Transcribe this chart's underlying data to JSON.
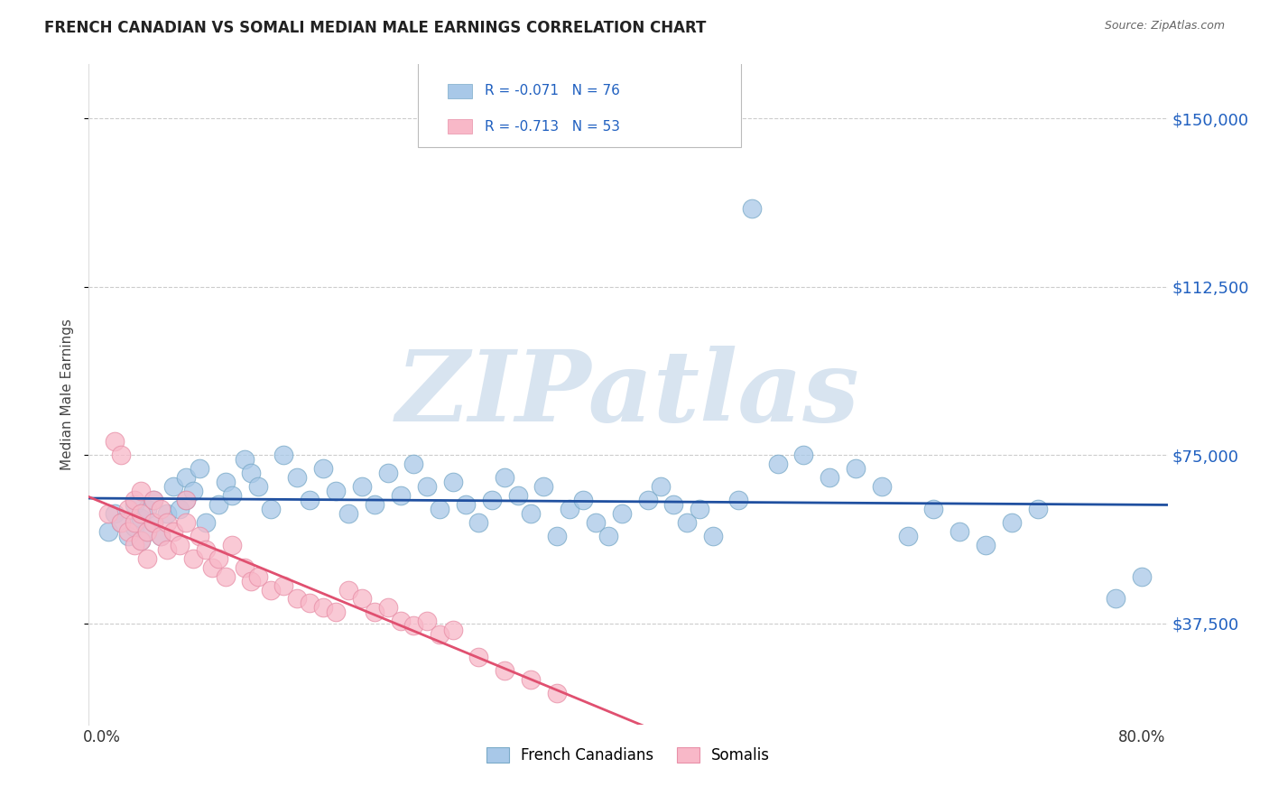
{
  "title": "FRENCH CANADIAN VS SOMALI MEDIAN MALE EARNINGS CORRELATION CHART",
  "source": "Source: ZipAtlas.com",
  "ylabel": "Median Male Earnings",
  "ytick_labels": [
    "$37,500",
    "$75,000",
    "$112,500",
    "$150,000"
  ],
  "ytick_values": [
    37500,
    75000,
    112500,
    150000
  ],
  "ylim": [
    15000,
    162000
  ],
  "xlim": [
    -0.01,
    0.82
  ],
  "xtick_positions": [
    0.0,
    0.8
  ],
  "xtick_labels": [
    "0.0%",
    "80.0%"
  ],
  "legend_blue_label": "French Canadians",
  "legend_pink_label": "Somalis",
  "legend_blue_r": "R = -0.071",
  "legend_blue_n": "N = 76",
  "legend_pink_r": "R = -0.713",
  "legend_pink_n": "N = 53",
  "blue_color": "#a8c8e8",
  "blue_edge_color": "#7aaac8",
  "pink_color": "#f8b8c8",
  "pink_edge_color": "#e890a8",
  "blue_line_color": "#2050a0",
  "pink_line_color": "#e05070",
  "background_color": "#ffffff",
  "watermark_color": "#d8e4f0",
  "title_color": "#222222",
  "source_color": "#666666",
  "ytick_color": "#2060c0",
  "ylabel_color": "#444444",
  "grid_color": "#cccccc",
  "legend_text_color": "#2060c0",
  "blue_x": [
    0.005,
    0.01,
    0.015,
    0.02,
    0.025,
    0.025,
    0.03,
    0.03,
    0.035,
    0.035,
    0.04,
    0.04,
    0.045,
    0.05,
    0.055,
    0.06,
    0.065,
    0.065,
    0.07,
    0.075,
    0.08,
    0.09,
    0.095,
    0.1,
    0.11,
    0.115,
    0.12,
    0.13,
    0.14,
    0.15,
    0.16,
    0.17,
    0.18,
    0.19,
    0.2,
    0.21,
    0.22,
    0.23,
    0.24,
    0.25,
    0.26,
    0.27,
    0.28,
    0.29,
    0.3,
    0.31,
    0.32,
    0.33,
    0.34,
    0.35,
    0.36,
    0.37,
    0.38,
    0.39,
    0.4,
    0.42,
    0.43,
    0.44,
    0.45,
    0.46,
    0.47,
    0.49,
    0.5,
    0.52,
    0.54,
    0.56,
    0.58,
    0.6,
    0.62,
    0.64,
    0.66,
    0.68,
    0.7,
    0.72,
    0.78,
    0.8
  ],
  "blue_y": [
    58000,
    62000,
    60000,
    57000,
    64000,
    59000,
    61000,
    56000,
    63000,
    58000,
    65000,
    60000,
    57000,
    62000,
    68000,
    63000,
    70000,
    65000,
    67000,
    72000,
    60000,
    64000,
    69000,
    66000,
    74000,
    71000,
    68000,
    63000,
    75000,
    70000,
    65000,
    72000,
    67000,
    62000,
    68000,
    64000,
    71000,
    66000,
    73000,
    68000,
    63000,
    69000,
    64000,
    60000,
    65000,
    70000,
    66000,
    62000,
    68000,
    57000,
    63000,
    65000,
    60000,
    57000,
    62000,
    65000,
    68000,
    64000,
    60000,
    63000,
    57000,
    65000,
    130000,
    73000,
    75000,
    70000,
    72000,
    68000,
    57000,
    63000,
    58000,
    55000,
    60000,
    63000,
    43000,
    48000
  ],
  "pink_x": [
    0.005,
    0.01,
    0.015,
    0.015,
    0.02,
    0.02,
    0.025,
    0.025,
    0.025,
    0.03,
    0.03,
    0.03,
    0.035,
    0.035,
    0.04,
    0.04,
    0.045,
    0.045,
    0.05,
    0.05,
    0.055,
    0.06,
    0.065,
    0.065,
    0.07,
    0.075,
    0.08,
    0.085,
    0.09,
    0.095,
    0.1,
    0.11,
    0.115,
    0.12,
    0.13,
    0.14,
    0.15,
    0.16,
    0.17,
    0.18,
    0.19,
    0.2,
    0.21,
    0.22,
    0.23,
    0.24,
    0.25,
    0.26,
    0.27,
    0.29,
    0.31,
    0.33,
    0.35
  ],
  "pink_y": [
    62000,
    78000,
    60000,
    75000,
    63000,
    58000,
    65000,
    60000,
    55000,
    67000,
    62000,
    56000,
    58000,
    52000,
    65000,
    60000,
    63000,
    57000,
    60000,
    54000,
    58000,
    55000,
    65000,
    60000,
    52000,
    57000,
    54000,
    50000,
    52000,
    48000,
    55000,
    50000,
    47000,
    48000,
    45000,
    46000,
    43000,
    42000,
    41000,
    40000,
    45000,
    43000,
    40000,
    41000,
    38000,
    37000,
    38000,
    35000,
    36000,
    30000,
    27000,
    25000,
    22000
  ]
}
